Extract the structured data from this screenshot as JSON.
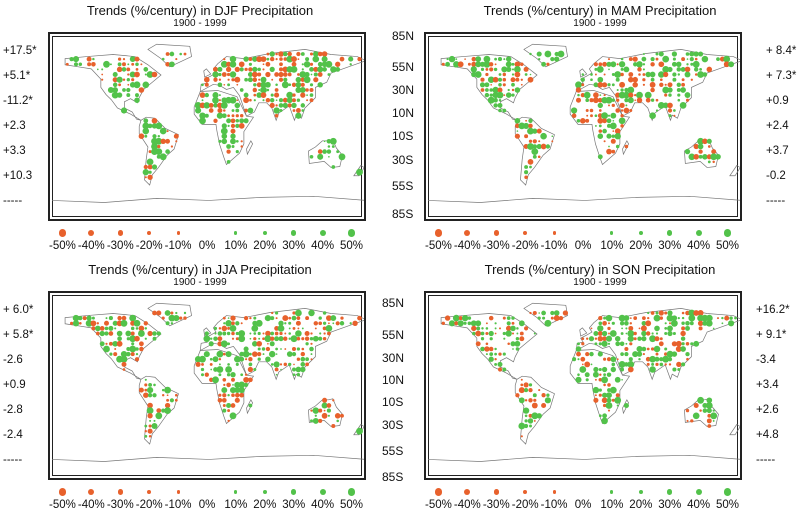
{
  "colors": {
    "decrease": "#e8612c",
    "increase": "#52c24a",
    "coast": "#777777",
    "frame": "#222222"
  },
  "panels": [
    {
      "id": "djf",
      "title": "Trends (%/century) in DJF Precipitation",
      "period": "1900 - 1999",
      "values": [
        "+17.5*",
        "+5.1*",
        "-11.2*",
        "+2.3",
        "+3.3",
        "+10.3",
        "-----"
      ]
    },
    {
      "id": "mam",
      "title": "Trends (%/century) in MAM Precipitation",
      "period": "1900 - 1999",
      "values": [
        "+ 8.4*",
        "+ 7.3*",
        "+0.9",
        "+2.4",
        "+3.7",
        "-0.2",
        "-----"
      ]
    },
    {
      "id": "jja",
      "title": "Trends (%/century) in JJA Precipitation",
      "period": "1900 - 1999",
      "values": [
        "+ 6.0*",
        "+ 5.8*",
        "-2.6",
        "+0.9",
        "-2.8",
        "-2.4",
        "-----"
      ]
    },
    {
      "id": "son",
      "title": "Trends (%/century) in SON Precipitation",
      "period": "1900 - 1999",
      "values": [
        "+16.2*",
        "+ 9.1*",
        "-3.4",
        "+3.4",
        "+2.6",
        "+4.8",
        "-----"
      ]
    }
  ],
  "latitude_labels": [
    "85N",
    "55N",
    "30N",
    "10N",
    "10S",
    "30S",
    "55S",
    "85S"
  ],
  "legend": {
    "labels": [
      "-50%",
      "-40%",
      "-30%",
      "-20%",
      "-10%",
      "0%",
      "10%",
      "20%",
      "30%",
      "40%",
      "50%"
    ],
    "values": [
      -50,
      -40,
      -30,
      -20,
      -10,
      0,
      10,
      20,
      30,
      40,
      50
    ]
  }
}
